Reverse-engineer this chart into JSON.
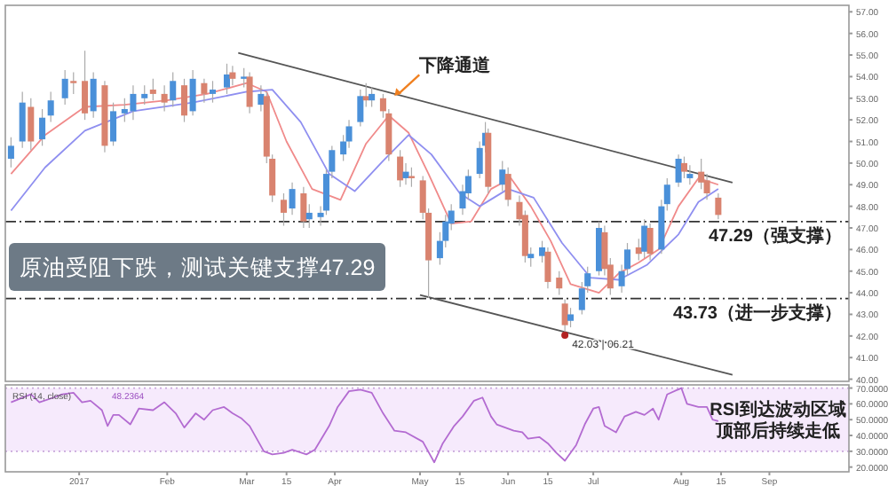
{
  "chart_data": [
    {
      "type": "candlestick",
      "tick_labels": "y",
      "x": [
        "2016-12-08",
        "2016-12-12",
        "2016-12-15",
        "2016-12-19",
        "2016-12-22",
        "2016-12-27",
        "2016-12-30",
        "2017-01-03",
        "2017-01-06",
        "2017-01-10",
        "2017-01-13",
        "2017-01-17",
        "2017-01-20",
        "2017-01-24",
        "2017-01-27",
        "2017-01-31",
        "2017-02-03",
        "2017-02-07",
        "2017-02-10",
        "2017-02-14",
        "2017-02-17",
        "2017-02-22",
        "2017-02-24",
        "2017-02-28",
        "2017-03-02",
        "2017-03-06",
        "2017-03-08",
        "2017-03-10",
        "2017-03-14",
        "2017-03-17",
        "2017-03-21",
        "2017-03-23",
        "2017-03-27",
        "2017-03-29",
        "2017-03-31",
        "2017-04-04",
        "2017-04-06",
        "2017-04-10",
        "2017-04-12",
        "2017-04-14",
        "2017-04-18",
        "2017-04-20",
        "2017-04-24",
        "2017-04-26",
        "2017-04-28",
        "2017-05-02",
        "2017-05-04",
        "2017-05-08",
        "2017-05-10",
        "2017-05-12",
        "2017-05-16",
        "2017-05-18",
        "2017-05-22",
        "2017-05-24",
        "2017-05-25",
        "2017-05-30",
        "2017-06-01",
        "2017-06-05",
        "2017-06-07",
        "2017-06-09",
        "2017-06-13",
        "2017-06-15",
        "2017-06-19",
        "2017-06-21",
        "2017-06-23",
        "2017-06-27",
        "2017-06-29",
        "2017-07-03",
        "2017-07-05",
        "2017-07-07",
        "2017-07-11",
        "2017-07-13",
        "2017-07-17",
        "2017-07-19",
        "2017-07-21",
        "2017-07-25",
        "2017-07-27",
        "2017-07-31",
        "2017-08-02",
        "2017-08-04",
        "2017-08-08",
        "2017-08-10",
        "2017-08-14"
      ],
      "ohlc": [
        [
          50.2,
          51.2,
          49.8,
          50.8
        ],
        [
          51.0,
          53.3,
          50.7,
          52.8
        ],
        [
          52.6,
          53.0,
          50.6,
          51.0
        ],
        [
          51.1,
          52.5,
          50.8,
          52.1
        ],
        [
          52.2,
          53.3,
          51.9,
          52.9
        ],
        [
          53.0,
          54.3,
          52.7,
          53.9
        ],
        [
          53.8,
          54.2,
          53.2,
          53.7
        ],
        [
          53.8,
          55.2,
          52.0,
          52.3
        ],
        [
          52.4,
          54.2,
          52.1,
          53.9
        ],
        [
          53.6,
          53.8,
          50.5,
          50.8
        ],
        [
          51.0,
          52.8,
          50.8,
          52.4
        ],
        [
          52.3,
          53.0,
          51.9,
          52.5
        ],
        [
          52.4,
          53.6,
          52.0,
          53.2
        ],
        [
          53.0,
          53.6,
          52.7,
          53.2
        ],
        [
          53.4,
          53.9,
          52.9,
          53.2
        ],
        [
          53.2,
          53.6,
          52.4,
          52.8
        ],
        [
          52.9,
          54.2,
          52.6,
          53.8
        ],
        [
          53.6,
          53.9,
          51.9,
          52.2
        ],
        [
          52.4,
          54.3,
          52.2,
          53.9
        ],
        [
          53.7,
          53.9,
          52.8,
          53.2
        ],
        [
          53.2,
          53.8,
          52.8,
          53.4
        ],
        [
          53.5,
          54.6,
          53.2,
          54.1
        ],
        [
          54.2,
          54.5,
          53.6,
          53.9
        ],
        [
          53.9,
          54.4,
          53.5,
          54.0
        ],
        [
          54.0,
          54.2,
          52.3,
          52.6
        ],
        [
          52.7,
          53.6,
          52.4,
          53.2
        ],
        [
          53.1,
          53.3,
          50.0,
          50.3
        ],
        [
          50.2,
          50.4,
          48.2,
          48.5
        ],
        [
          48.3,
          48.6,
          47.1,
          47.7
        ],
        [
          47.9,
          49.1,
          47.6,
          48.8
        ],
        [
          48.6,
          48.9,
          47.0,
          47.3
        ],
        [
          47.4,
          48.1,
          47.0,
          47.7
        ],
        [
          47.5,
          48.0,
          47.1,
          47.7
        ],
        [
          47.8,
          49.7,
          47.6,
          49.5
        ],
        [
          49.6,
          50.8,
          49.3,
          50.6
        ],
        [
          50.4,
          51.3,
          50.1,
          51.0
        ],
        [
          51.0,
          52.0,
          50.7,
          51.7
        ],
        [
          51.9,
          53.4,
          51.7,
          53.1
        ],
        [
          53.1,
          53.7,
          52.6,
          52.9
        ],
        [
          52.9,
          53.5,
          52.6,
          53.2
        ],
        [
          53.0,
          53.2,
          52.1,
          52.4
        ],
        [
          52.3,
          52.5,
          50.1,
          50.4
        ],
        [
          50.3,
          50.6,
          48.9,
          49.2
        ],
        [
          49.3,
          50.0,
          49.0,
          49.6
        ],
        [
          49.4,
          49.8,
          48.9,
          49.3
        ],
        [
          49.2,
          49.4,
          47.4,
          47.7
        ],
        [
          47.7,
          47.9,
          43.76,
          45.5
        ],
        [
          45.6,
          46.8,
          45.3,
          46.4
        ],
        [
          46.4,
          47.6,
          46.1,
          47.3
        ],
        [
          47.2,
          48.1,
          46.9,
          47.8
        ],
        [
          47.9,
          49.0,
          47.6,
          48.7
        ],
        [
          48.6,
          49.7,
          48.3,
          49.4
        ],
        [
          49.5,
          51.0,
          49.3,
          50.7
        ],
        [
          50.8,
          51.9,
          50.5,
          51.4
        ],
        [
          51.4,
          51.6,
          48.6,
          48.9
        ],
        [
          49.0,
          50.1,
          48.7,
          49.7
        ],
        [
          49.5,
          49.8,
          48.0,
          48.3
        ],
        [
          48.2,
          48.5,
          47.1,
          47.4
        ],
        [
          47.6,
          47.8,
          45.4,
          45.7
        ],
        [
          45.6,
          46.1,
          45.2,
          45.8
        ],
        [
          45.7,
          46.4,
          45.4,
          46.1
        ],
        [
          45.9,
          46.1,
          44.2,
          44.5
        ],
        [
          44.7,
          45.0,
          43.9,
          44.2
        ],
        [
          43.5,
          43.7,
          42.03,
          42.5
        ],
        [
          42.7,
          43.3,
          42.4,
          43.0
        ],
        [
          43.2,
          44.5,
          43.0,
          44.2
        ],
        [
          44.3,
          45.2,
          44.0,
          44.9
        ],
        [
          45.0,
          47.3,
          44.8,
          47.0
        ],
        [
          46.8,
          47.1,
          44.8,
          45.1
        ],
        [
          45.3,
          45.6,
          43.9,
          44.2
        ],
        [
          44.3,
          45.3,
          44.0,
          45.0
        ],
        [
          45.1,
          46.3,
          44.8,
          46.0
        ],
        [
          46.1,
          46.5,
          45.5,
          45.8
        ],
        [
          45.9,
          47.4,
          45.6,
          47.1
        ],
        [
          47.0,
          47.2,
          45.5,
          45.8
        ],
        [
          46.0,
          48.3,
          45.8,
          48.0
        ],
        [
          48.1,
          49.3,
          47.8,
          49.0
        ],
        [
          49.1,
          50.4,
          48.9,
          50.2
        ],
        [
          50.0,
          50.3,
          49.3,
          49.6
        ],
        [
          49.3,
          49.9,
          49.0,
          49.5
        ],
        [
          49.6,
          50.2,
          48.8,
          49.1
        ],
        [
          49.2,
          49.5,
          48.3,
          48.6
        ],
        [
          48.4,
          48.6,
          47.4,
          47.6
        ]
      ],
      "colors": [
        "#4a90d9",
        "#4a90d9",
        "#d9836f",
        "#4a90d9",
        "#4a90d9",
        "#4a90d9",
        "#d9836f",
        "#d9836f",
        "#4a90d9",
        "#d9836f",
        "#4a90d9",
        "#4a90d9",
        "#4a90d9",
        "#4a90d9",
        "#d9836f",
        "#d9836f",
        "#4a90d9",
        "#d9836f",
        "#4a90d9",
        "#d9836f",
        "#4a90d9",
        "#4a90d9",
        "#d9836f",
        "#4a90d9",
        "#d9836f",
        "#4a90d9",
        "#d9836f",
        "#d9836f",
        "#d9836f",
        "#4a90d9",
        "#d9836f",
        "#4a90d9",
        "#4a90d9",
        "#4a90d9",
        "#4a90d9",
        "#4a90d9",
        "#4a90d9",
        "#4a90d9",
        "#d9836f",
        "#4a90d9",
        "#d9836f",
        "#d9836f",
        "#d9836f",
        "#4a90d9",
        "#d9836f",
        "#d9836f",
        "#d9836f",
        "#4a90d9",
        "#4a90d9",
        "#4a90d9",
        "#4a90d9",
        "#4a90d9",
        "#4a90d9",
        "#4a90d9",
        "#d9836f",
        "#4a90d9",
        "#d9836f",
        "#d9836f",
        "#d9836f",
        "#4a90d9",
        "#4a90d9",
        "#d9836f",
        "#d9836f",
        "#d9836f",
        "#4a90d9",
        "#4a90d9",
        "#4a90d9",
        "#4a90d9",
        "#d9836f",
        "#d9836f",
        "#4a90d9",
        "#4a90d9",
        "#d9836f",
        "#4a90d9",
        "#d9836f",
        "#4a90d9",
        "#4a90d9",
        "#4a90d9",
        "#d9836f",
        "#4a90d9",
        "#d9836f",
        "#d9836f",
        "#d9836f"
      ],
      "series": [
        {
          "type": "line",
          "color": "#f08a8a",
          "x": [
            "2016-12-08",
            "2016-12-20",
            "2017-01-03",
            "2017-01-17",
            "2017-02-01",
            "2017-02-15",
            "2017-03-01",
            "2017-03-08",
            "2017-03-15",
            "2017-03-24",
            "2017-04-03",
            "2017-04-12",
            "2017-04-20",
            "2017-04-27",
            "2017-05-04",
            "2017-05-12",
            "2017-05-19",
            "2017-05-26",
            "2017-06-02",
            "2017-06-09",
            "2017-06-16",
            "2017-06-23",
            "2017-07-03",
            "2017-07-10",
            "2017-07-17",
            "2017-07-24",
            "2017-07-31",
            "2017-08-07",
            "2017-08-14"
          ],
          "values": [
            49.5,
            51.3,
            52.6,
            52.7,
            52.9,
            53.2,
            53.7,
            53.3,
            51.0,
            48.8,
            48.3,
            50.9,
            52.2,
            51.4,
            49.5,
            47.2,
            47.3,
            48.8,
            49.3,
            48.0,
            46.4,
            44.4,
            44.0,
            44.9,
            45.4,
            46.0,
            48.0,
            49.3,
            49.0
          ]
        },
        {
          "type": "line",
          "color": "#8f8ff0",
          "x": [
            "2016-12-08",
            "2016-12-20",
            "2017-01-03",
            "2017-01-20",
            "2017-02-10",
            "2017-03-01",
            "2017-03-10",
            "2017-03-20",
            "2017-03-30",
            "2017-04-08",
            "2017-04-18",
            "2017-04-27",
            "2017-05-05",
            "2017-05-15",
            "2017-05-22",
            "2017-06-01",
            "2017-06-10",
            "2017-06-20",
            "2017-06-30",
            "2017-07-10",
            "2017-07-20",
            "2017-07-31",
            "2017-08-07",
            "2017-08-14"
          ],
          "values": [
            47.8,
            49.8,
            51.5,
            52.4,
            52.8,
            53.3,
            53.4,
            51.9,
            49.5,
            48.7,
            50.1,
            51.3,
            50.4,
            48.6,
            48.0,
            48.8,
            48.4,
            46.3,
            44.7,
            44.6,
            45.3,
            46.7,
            48.2,
            48.8
          ]
        },
        {
          "type": "line",
          "color": "#555555",
          "x": [
            "2017-02-26",
            "2017-08-19"
          ],
          "values": [
            55.1,
            49.1
          ]
        },
        {
          "type": "line",
          "color": "#555555",
          "x": [
            "2017-05-01",
            "2017-08-19"
          ],
          "values": [
            43.9,
            40.2
          ]
        }
      ],
      "xlim": [
        "2016-12-06",
        "2017-09-29"
      ],
      "ylim": [
        39.9,
        57.3
      ],
      "yticks": [
        {
          "value": 40,
          "label": "40.00"
        },
        {
          "value": 41,
          "label": "41.00"
        },
        {
          "value": 42,
          "label": "42.00"
        },
        {
          "value": 43,
          "label": "43.00"
        },
        {
          "value": 44,
          "label": "44.00"
        },
        {
          "value": 45,
          "label": "45.00"
        },
        {
          "value": 46,
          "label": "46.00"
        },
        {
          "value": 47,
          "label": "47.00"
        },
        {
          "value": 48,
          "label": "48.00"
        },
        {
          "value": 49,
          "label": "49.00"
        },
        {
          "value": 50,
          "label": "50.00"
        },
        {
          "value": 51,
          "label": "51.00"
        },
        {
          "value": 52,
          "label": "52.00"
        },
        {
          "value": 53,
          "label": "53.00"
        },
        {
          "value": 54,
          "label": "54.00"
        },
        {
          "value": 55,
          "label": "55.00"
        },
        {
          "value": 56,
          "label": "56.00"
        },
        {
          "value": 57,
          "label": "57.00"
        }
      ],
      "ref_lines": [
        {
          "axis": "y",
          "value": 47.29,
          "label": "47.29（强支撑）",
          "color": "#333333",
          "line_style": "dashed"
        },
        {
          "axis": "y",
          "value": 43.73,
          "label": "43.73（进一步支撑）",
          "color": "#333333",
          "line_style": "dashed"
        }
      ],
      "annotations": [
        {
          "text": "下降通道",
          "x": "2017-04-22",
          "y": 53.1
        },
        {
          "text": "42.03 | 06.21",
          "x": "2017-06-21",
          "y": 42.03
        },
        "原油受阻下跌，测试关键支撑47.29"
      ]
    },
    {
      "type": "line",
      "series": [
        {
          "color": "#b36bd1",
          "x": [
            "2016-12-08",
            "2016-12-15",
            "2016-12-18",
            "2016-12-23",
            "2016-12-26",
            "2016-12-30",
            "2017-01-02",
            "2017-01-05",
            "2017-01-09",
            "2017-01-11",
            "2017-01-13",
            "2017-01-15",
            "2017-01-19",
            "2017-01-22",
            "2017-01-27",
            "2017-01-31",
            "2017-02-04",
            "2017-02-07",
            "2017-02-11",
            "2017-02-14",
            "2017-02-17",
            "2017-02-21",
            "2017-02-24",
            "2017-02-27",
            "2017-03-02",
            "2017-03-07",
            "2017-03-10",
            "2017-03-14",
            "2017-03-17",
            "2017-03-22",
            "2017-03-25",
            "2017-03-30",
            "2017-04-02",
            "2017-04-06",
            "2017-04-10",
            "2017-04-14",
            "2017-04-18",
            "2017-04-22",
            "2017-04-26",
            "2017-05-02",
            "2017-05-06",
            "2017-05-09",
            "2017-05-13",
            "2017-05-16",
            "2017-05-20",
            "2017-05-23",
            "2017-05-26",
            "2017-05-28",
            "2017-05-31",
            "2017-06-03",
            "2017-06-06",
            "2017-06-08",
            "2017-06-12",
            "2017-06-15",
            "2017-06-18",
            "2017-06-21",
            "2017-06-25",
            "2017-06-28",
            "2017-07-01",
            "2017-07-03",
            "2017-07-05",
            "2017-07-09",
            "2017-07-12",
            "2017-07-16",
            "2017-07-19",
            "2017-07-22",
            "2017-07-24",
            "2017-07-27",
            "2017-08-01",
            "2017-08-03",
            "2017-08-07",
            "2017-08-10",
            "2017-08-12",
            "2017-08-14"
          ],
          "values": [
            61,
            66,
            61,
            64,
            66,
            67,
            61,
            62,
            56,
            46,
            53,
            53,
            47,
            57,
            56,
            61,
            54,
            45,
            54,
            50,
            56,
            58,
            54,
            51,
            46,
            30,
            28,
            29,
            31,
            28,
            31,
            46,
            58,
            68,
            69,
            67,
            54,
            43,
            42,
            36,
            23,
            35,
            46,
            52,
            62,
            64,
            52,
            47,
            45,
            43,
            42,
            38,
            39,
            35,
            29,
            24,
            34,
            47,
            57,
            58,
            46,
            42,
            52,
            55,
            53,
            57,
            50,
            66,
            70,
            60,
            58,
            58,
            50,
            49
          ]
        }
      ],
      "xlim": [
        "2016-12-06",
        "2017-09-29"
      ],
      "ylim": [
        17,
        72
      ],
      "yticks": [
        {
          "value": 20,
          "label": "20.0000"
        },
        {
          "value": 30,
          "label": "30.0000"
        },
        {
          "value": 40,
          "label": "40.0000"
        },
        {
          "value": 50,
          "label": "50.0000"
        },
        {
          "value": 60,
          "label": "60.0000"
        },
        {
          "value": 70,
          "label": "70.0000"
        }
      ],
      "xticks": [
        {
          "value": "2017-01-01",
          "label": "2017"
        },
        {
          "value": "2017-02-01",
          "label": "Feb"
        },
        {
          "value": "2017-03-01",
          "label": "Mar"
        },
        {
          "value": "2017-03-15",
          "label": "15"
        },
        {
          "value": "2017-04-01",
          "label": "Apr"
        },
        {
          "value": "2017-05-01",
          "label": "May"
        },
        {
          "value": "2017-05-15",
          "label": "15"
        },
        {
          "value": "2017-06-01",
          "label": "Jun"
        },
        {
          "value": "2017-06-15",
          "label": "15"
        },
        {
          "value": "2017-07-01",
          "label": "Jul"
        },
        {
          "value": "2017-08-01",
          "label": "Aug"
        },
        {
          "value": "2017-08-15",
          "label": "15"
        },
        {
          "value": "2017-09-01",
          "label": "Sep"
        }
      ],
      "bands": [
        {
          "axis": "y",
          "from": 30,
          "to": 70,
          "color": "#f6eafc"
        }
      ],
      "ref_lines": [
        {
          "axis": "y",
          "value": 30,
          "color": "#c9a8dc",
          "line_style": "dotted"
        },
        {
          "axis": "y",
          "value": 70,
          "color": "#c9a8dc",
          "line_style": "dotted"
        }
      ],
      "annotations": [
        "RSI (14, close)",
        "48.2364",
        "RSI到达波动区域",
        "顶部后持续走低"
      ]
    }
  ]
}
